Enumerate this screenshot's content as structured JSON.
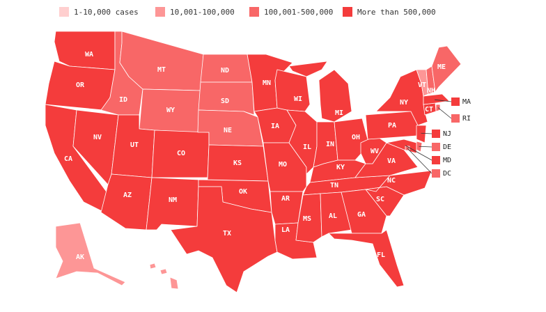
{
  "legend": [
    {
      "label": "1-10,000 cases",
      "color": "#ffcfcf"
    },
    {
      "label": "10,001-100,000",
      "color": "#fd9696"
    },
    {
      "label": "100,001-500,000",
      "color": "#f86767"
    },
    {
      "label": "More than 500,000",
      "color": "#f43c3c"
    }
  ],
  "states": [
    {
      "abbr": "WA",
      "category": 3
    },
    {
      "abbr": "OR",
      "category": 3
    },
    {
      "abbr": "CA",
      "category": 3
    },
    {
      "abbr": "NV",
      "category": 3
    },
    {
      "abbr": "ID",
      "category": 2
    },
    {
      "abbr": "MT",
      "category": 2
    },
    {
      "abbr": "WY",
      "category": 2
    },
    {
      "abbr": "UT",
      "category": 3
    },
    {
      "abbr": "CO",
      "category": 3
    },
    {
      "abbr": "AZ",
      "category": 3
    },
    {
      "abbr": "NM",
      "category": 3
    },
    {
      "abbr": "ND",
      "category": 2
    },
    {
      "abbr": "SD",
      "category": 2
    },
    {
      "abbr": "NE",
      "category": 2
    },
    {
      "abbr": "KS",
      "category": 3
    },
    {
      "abbr": "OK",
      "category": 3
    },
    {
      "abbr": "TX",
      "category": 3
    },
    {
      "abbr": "MN",
      "category": 3
    },
    {
      "abbr": "IA",
      "category": 3
    },
    {
      "abbr": "MO",
      "category": 3
    },
    {
      "abbr": "AR",
      "category": 3
    },
    {
      "abbr": "LA",
      "category": 3
    },
    {
      "abbr": "WI",
      "category": 3
    },
    {
      "abbr": "IL",
      "category": 3
    },
    {
      "abbr": "MI",
      "category": 3
    },
    {
      "abbr": "IN",
      "category": 3
    },
    {
      "abbr": "OH",
      "category": 3
    },
    {
      "abbr": "KY",
      "category": 3
    },
    {
      "abbr": "TN",
      "category": 3
    },
    {
      "abbr": "MS",
      "category": 3
    },
    {
      "abbr": "AL",
      "category": 3
    },
    {
      "abbr": "GA",
      "category": 3
    },
    {
      "abbr": "FL",
      "category": 3
    },
    {
      "abbr": "SC",
      "category": 3
    },
    {
      "abbr": "NC",
      "category": 3
    },
    {
      "abbr": "VA",
      "category": 3
    },
    {
      "abbr": "WV",
      "category": 3
    },
    {
      "abbr": "PA",
      "category": 3
    },
    {
      "abbr": "NY",
      "category": 3
    },
    {
      "abbr": "NJ",
      "category": 3
    },
    {
      "abbr": "DE",
      "category": 2
    },
    {
      "abbr": "MD",
      "category": 3
    },
    {
      "abbr": "DC",
      "category": 2
    },
    {
      "abbr": "CT",
      "category": 3
    },
    {
      "abbr": "RI",
      "category": 2
    },
    {
      "abbr": "MA",
      "category": 3
    },
    {
      "abbr": "VT",
      "category": 1
    },
    {
      "abbr": "NH",
      "category": 2
    },
    {
      "abbr": "ME",
      "category": 2
    },
    {
      "abbr": "AK",
      "category": 1
    },
    {
      "abbr": "HI",
      "category": 1
    }
  ]
}
